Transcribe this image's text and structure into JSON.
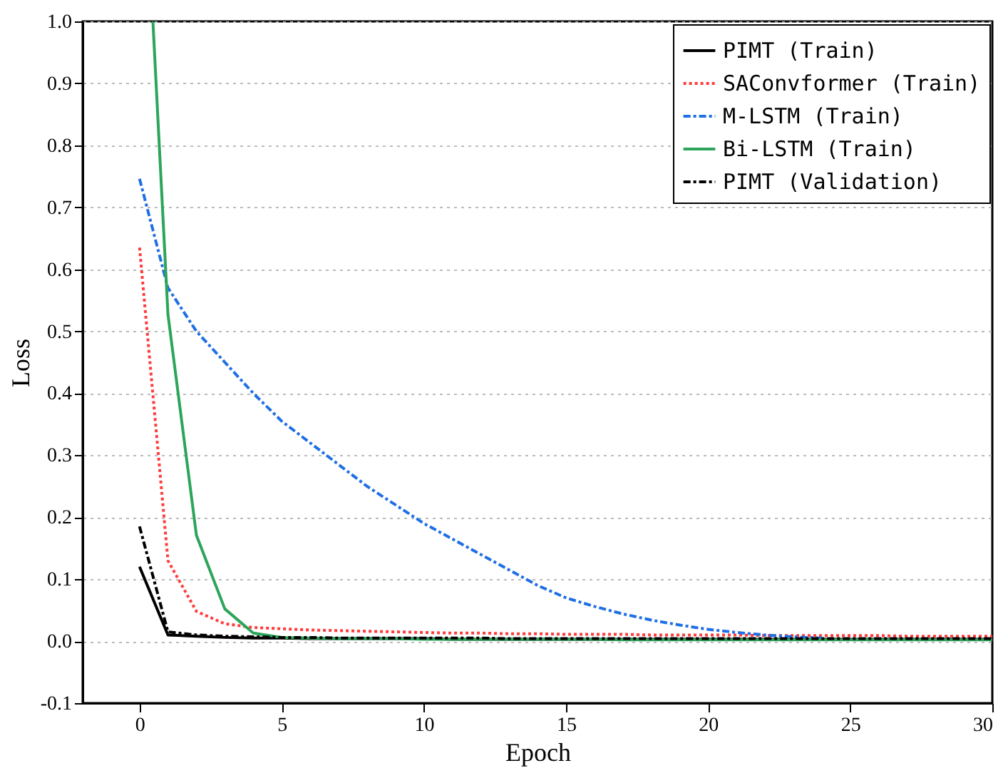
{
  "chart_data": {
    "type": "line",
    "xlabel": "Epoch",
    "ylabel": "Loss",
    "x": [
      0,
      1,
      2,
      3,
      4,
      5,
      6,
      7,
      8,
      9,
      10,
      11,
      12,
      13,
      14,
      15,
      16,
      17,
      18,
      19,
      20,
      21,
      22,
      23,
      24,
      25,
      26,
      27,
      28,
      29,
      30
    ],
    "xlim": [
      -2,
      30
    ],
    "xticks": [
      0,
      5,
      10,
      15,
      20,
      25,
      30
    ],
    "ylim": [
      -0.1,
      1.0
    ],
    "yticks": [
      {
        "value": -0.1,
        "label": "-0.1"
      },
      {
        "value": 0,
        "label": "0.0"
      },
      {
        "value": 0.1,
        "label": "0.1"
      },
      {
        "value": 0.2,
        "label": "0.2"
      },
      {
        "value": 0.3,
        "label": "0.3"
      },
      {
        "value": 0.4,
        "label": "0.4"
      },
      {
        "value": 0.5,
        "label": "0.5"
      },
      {
        "value": 0.6,
        "label": "0.6"
      },
      {
        "value": 0.7,
        "label": "0.7"
      },
      {
        "value": 0.8,
        "label": "0.8"
      },
      {
        "value": 0.9,
        "label": "0.9"
      },
      {
        "value": 1.0,
        "label": "1.0"
      }
    ],
    "grid": "y",
    "legend": "top right",
    "series": [
      {
        "name": "PIMT (Train)",
        "color": "#000000",
        "line_style": "solid",
        "values": [
          0.12,
          0.01,
          0.008,
          0.006,
          0.005,
          0.005,
          0.004,
          0.004,
          0.004,
          0.004,
          0.004,
          0.003,
          0.003,
          0.003,
          0.003,
          0.003,
          0.003,
          0.003,
          0.003,
          0.003,
          0.003,
          0.003,
          0.003,
          0.003,
          0.003,
          0.003,
          0.003,
          0.003,
          0.003,
          0.003,
          0.003
        ]
      },
      {
        "name": "SAConvformer (Train)",
        "color": "#ff3b3b",
        "line_style": "dotted",
        "values": [
          0.635,
          0.13,
          0.048,
          0.028,
          0.022,
          0.02,
          0.018,
          0.017,
          0.016,
          0.015,
          0.014,
          0.013,
          0.013,
          0.012,
          0.012,
          0.011,
          0.011,
          0.011,
          0.01,
          0.01,
          0.01,
          0.01,
          0.009,
          0.009,
          0.009,
          0.009,
          0.009,
          0.008,
          0.008,
          0.008,
          0.008
        ]
      },
      {
        "name": "M-LSTM (Train)",
        "color": "#1f6fe5",
        "line_style": "dashed",
        "values": [
          0.746,
          0.57,
          0.5,
          0.45,
          0.4,
          0.355,
          0.32,
          0.285,
          0.25,
          0.22,
          0.19,
          0.165,
          0.14,
          0.115,
          0.09,
          0.07,
          0.056,
          0.044,
          0.034,
          0.026,
          0.019,
          0.014,
          0.01,
          0.007,
          0.005,
          null,
          null,
          null,
          null,
          null,
          null
        ]
      },
      {
        "name": "Bi-LSTM (Train)",
        "color": "#2ca55a",
        "line_style": "solid",
        "x": [
          0.47,
          1,
          2,
          3,
          4,
          5,
          6,
          7,
          8,
          9,
          10,
          11,
          12,
          13,
          14,
          15,
          16,
          17,
          18,
          19,
          20,
          21,
          22,
          23,
          24,
          25,
          26,
          27,
          28,
          29,
          30
        ],
        "values": [
          1.0,
          0.527,
          0.171,
          0.052,
          0.013,
          0.006,
          0.005,
          0.004,
          0.004,
          0.004,
          0.003,
          0.003,
          0.003,
          0.003,
          0.003,
          0.003,
          0.003,
          0.002,
          0.002,
          0.002,
          0.002,
          0.002,
          0.002,
          0.002,
          0.002,
          0.002,
          0.002,
          0.002,
          0.002,
          0.002,
          0.002
        ]
      },
      {
        "name": "PIMT (Validation)",
        "color": "#000000",
        "line_style": "dashed",
        "values": [
          0.185,
          0.015,
          0.01,
          0.008,
          0.007,
          0.006,
          0.006,
          0.005,
          0.005,
          0.005,
          0.005,
          0.005,
          0.005,
          0.004,
          0.004,
          0.004,
          0.004,
          0.004,
          0.004,
          0.004,
          0.004,
          0.004,
          0.004,
          0.004,
          0.004,
          0.004,
          0.004,
          0.004,
          0.004,
          0.004,
          0.004
        ]
      }
    ]
  }
}
